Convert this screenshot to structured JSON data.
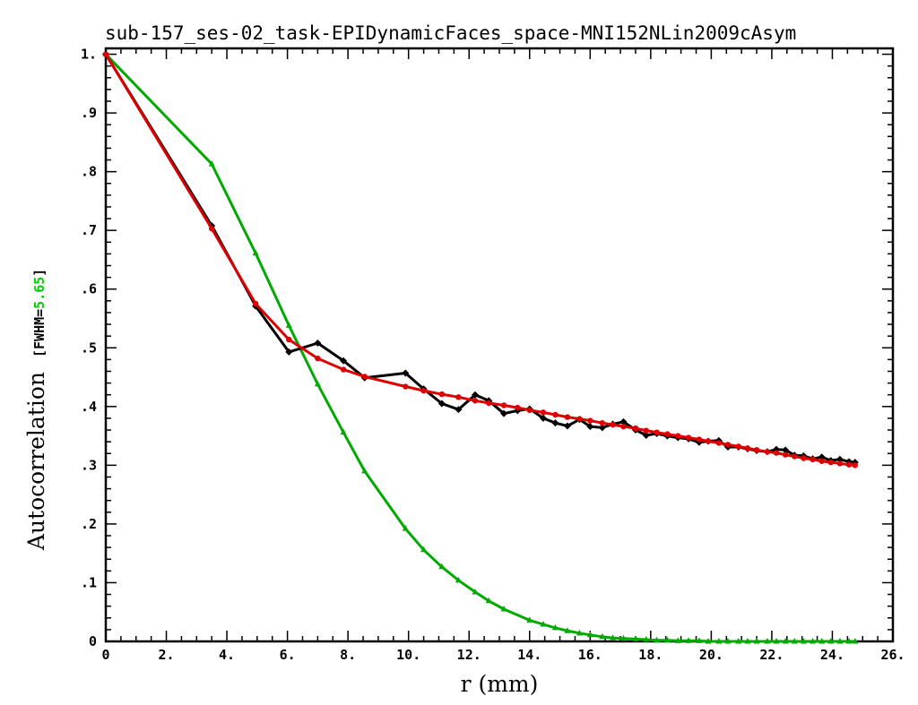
{
  "chart_data": {
    "type": "line",
    "title": "sub-157_ses-02_task-EPIDynamicFaces_space-MNI152NLin2009cAsym",
    "xlabel": "r (mm)",
    "ylabel": "Autocorrelation",
    "fwhm_prefix": "[FWHM=",
    "fwhm_value": "5.65",
    "fwhm_suffix": "]",
    "xlim": [
      0,
      26
    ],
    "ylim": [
      0,
      1.01
    ],
    "x_ticks": [
      {
        "value": 0,
        "label": "0"
      },
      {
        "value": 2,
        "label": "2."
      },
      {
        "value": 4,
        "label": "4."
      },
      {
        "value": 6,
        "label": "6."
      },
      {
        "value": 8,
        "label": "8."
      },
      {
        "value": 10,
        "label": "10."
      },
      {
        "value": 12,
        "label": "12."
      },
      {
        "value": 14,
        "label": "14."
      },
      {
        "value": 16,
        "label": "16."
      },
      {
        "value": 18,
        "label": "18."
      },
      {
        "value": 20,
        "label": "20."
      },
      {
        "value": 22,
        "label": "22."
      },
      {
        "value": 24,
        "label": "24."
      },
      {
        "value": 26,
        "label": "26."
      }
    ],
    "y_ticks": [
      {
        "value": 0,
        "label": "0"
      },
      {
        "value": 0.1,
        "label": ".1"
      },
      {
        "value": 0.2,
        "label": ".2"
      },
      {
        "value": 0.3,
        "label": ".3"
      },
      {
        "value": 0.4,
        "label": ".4"
      },
      {
        "value": 0.5,
        "label": ".5"
      },
      {
        "value": 0.6,
        "label": ".6"
      },
      {
        "value": 0.7,
        "label": ".7"
      },
      {
        "value": 0.8,
        "label": ".8"
      },
      {
        "value": 0.9,
        "label": ".9"
      },
      {
        "value": 1.0,
        "label": "1."
      }
    ],
    "series": [
      {
        "color": "#000000",
        "marker": "diamond",
        "points": [
          [
            0,
            1.0
          ],
          [
            3.5,
            0.708
          ],
          [
            4.95,
            0.571
          ],
          [
            6.05,
            0.493
          ],
          [
            7.0,
            0.508
          ],
          [
            7.85,
            0.478
          ],
          [
            8.55,
            0.449
          ],
          [
            9.9,
            0.457
          ],
          [
            10.5,
            0.43
          ],
          [
            11.1,
            0.405
          ],
          [
            11.65,
            0.395
          ],
          [
            12.2,
            0.42
          ],
          [
            12.65,
            0.41
          ],
          [
            13.15,
            0.388
          ],
          [
            13.6,
            0.393
          ],
          [
            14.0,
            0.396
          ],
          [
            14.45,
            0.38
          ],
          [
            14.85,
            0.372
          ],
          [
            15.25,
            0.367
          ],
          [
            15.65,
            0.378
          ],
          [
            16.0,
            0.366
          ],
          [
            16.4,
            0.364
          ],
          [
            16.75,
            0.37
          ],
          [
            17.1,
            0.374
          ],
          [
            17.5,
            0.36
          ],
          [
            17.85,
            0.351
          ],
          [
            18.2,
            0.354
          ],
          [
            18.55,
            0.35
          ],
          [
            18.9,
            0.347
          ],
          [
            19.25,
            0.345
          ],
          [
            19.6,
            0.339
          ],
          [
            19.9,
            0.341
          ],
          [
            20.25,
            0.342
          ],
          [
            20.55,
            0.331
          ],
          [
            20.9,
            0.331
          ],
          [
            21.2,
            0.328
          ],
          [
            21.5,
            0.325
          ],
          [
            21.85,
            0.323
          ],
          [
            22.15,
            0.327
          ],
          [
            22.45,
            0.326
          ],
          [
            22.75,
            0.317
          ],
          [
            23.05,
            0.316
          ],
          [
            23.35,
            0.311
          ],
          [
            23.65,
            0.314
          ],
          [
            23.95,
            0.308
          ],
          [
            24.25,
            0.31
          ],
          [
            24.55,
            0.306
          ],
          [
            24.75,
            0.305
          ]
        ]
      },
      {
        "color": "#dd0000",
        "marker": "circle",
        "points": [
          [
            0,
            1.0
          ],
          [
            3.5,
            0.703
          ],
          [
            4.95,
            0.575
          ],
          [
            6.05,
            0.514
          ],
          [
            7.0,
            0.482
          ],
          [
            7.85,
            0.463
          ],
          [
            8.55,
            0.451
          ],
          [
            9.9,
            0.434
          ],
          [
            10.5,
            0.427
          ],
          [
            11.1,
            0.421
          ],
          [
            11.65,
            0.416
          ],
          [
            12.2,
            0.41
          ],
          [
            12.65,
            0.406
          ],
          [
            13.15,
            0.402
          ],
          [
            13.6,
            0.398
          ],
          [
            14.0,
            0.394
          ],
          [
            14.45,
            0.39
          ],
          [
            14.85,
            0.386
          ],
          [
            15.25,
            0.382
          ],
          [
            15.65,
            0.379
          ],
          [
            16.0,
            0.376
          ],
          [
            16.4,
            0.372
          ],
          [
            16.75,
            0.369
          ],
          [
            17.1,
            0.366
          ],
          [
            17.5,
            0.363
          ],
          [
            17.85,
            0.359
          ],
          [
            18.2,
            0.356
          ],
          [
            18.55,
            0.353
          ],
          [
            18.9,
            0.35
          ],
          [
            19.25,
            0.347
          ],
          [
            19.6,
            0.344
          ],
          [
            19.9,
            0.341
          ],
          [
            20.25,
            0.338
          ],
          [
            20.55,
            0.335
          ],
          [
            20.9,
            0.332
          ],
          [
            21.2,
            0.329
          ],
          [
            21.5,
            0.326
          ],
          [
            21.85,
            0.323
          ],
          [
            22.15,
            0.321
          ],
          [
            22.45,
            0.318
          ],
          [
            22.75,
            0.315
          ],
          [
            23.05,
            0.312
          ],
          [
            23.35,
            0.31
          ],
          [
            23.65,
            0.307
          ],
          [
            23.95,
            0.305
          ],
          [
            24.25,
            0.303
          ],
          [
            24.55,
            0.301
          ],
          [
            24.75,
            0.3
          ]
        ]
      },
      {
        "color": "#00aa00",
        "marker": "triangle",
        "points": [
          [
            0,
            1.0
          ],
          [
            3.5,
            0.813
          ],
          [
            4.95,
            0.661
          ],
          [
            6.05,
            0.538
          ],
          [
            7.0,
            0.438
          ],
          [
            7.85,
            0.356
          ],
          [
            8.55,
            0.29
          ],
          [
            9.9,
            0.192
          ],
          [
            10.5,
            0.156
          ],
          [
            11.1,
            0.127
          ],
          [
            11.65,
            0.104
          ],
          [
            12.2,
            0.084
          ],
          [
            12.65,
            0.069
          ],
          [
            13.15,
            0.055
          ],
          [
            14.0,
            0.036
          ],
          [
            14.45,
            0.029
          ],
          [
            14.85,
            0.023
          ],
          [
            15.25,
            0.018
          ],
          [
            15.65,
            0.014
          ],
          [
            16.0,
            0.011
          ],
          [
            16.4,
            0.008
          ],
          [
            16.75,
            0.006
          ],
          [
            17.1,
            0.005
          ],
          [
            17.5,
            0.004
          ],
          [
            17.85,
            0.003
          ],
          [
            18.2,
            0.002
          ],
          [
            18.55,
            0.002
          ],
          [
            18.9,
            0.001
          ],
          [
            19.25,
            0.001
          ],
          [
            19.6,
            0.001
          ],
          [
            19.9,
            0.0
          ],
          [
            20.25,
            0.0
          ],
          [
            20.55,
            0.0
          ],
          [
            20.9,
            0.0
          ],
          [
            21.2,
            0.0
          ],
          [
            21.5,
            0.0
          ],
          [
            21.85,
            0.0
          ],
          [
            22.15,
            0.0
          ],
          [
            22.45,
            0.0
          ],
          [
            22.75,
            0.0
          ],
          [
            23.05,
            0.0
          ],
          [
            23.35,
            0.0
          ],
          [
            23.65,
            0.0
          ],
          [
            23.95,
            0.0
          ],
          [
            24.25,
            0.0
          ],
          [
            24.55,
            0.0
          ],
          [
            24.75,
            0.0
          ]
        ]
      }
    ]
  }
}
